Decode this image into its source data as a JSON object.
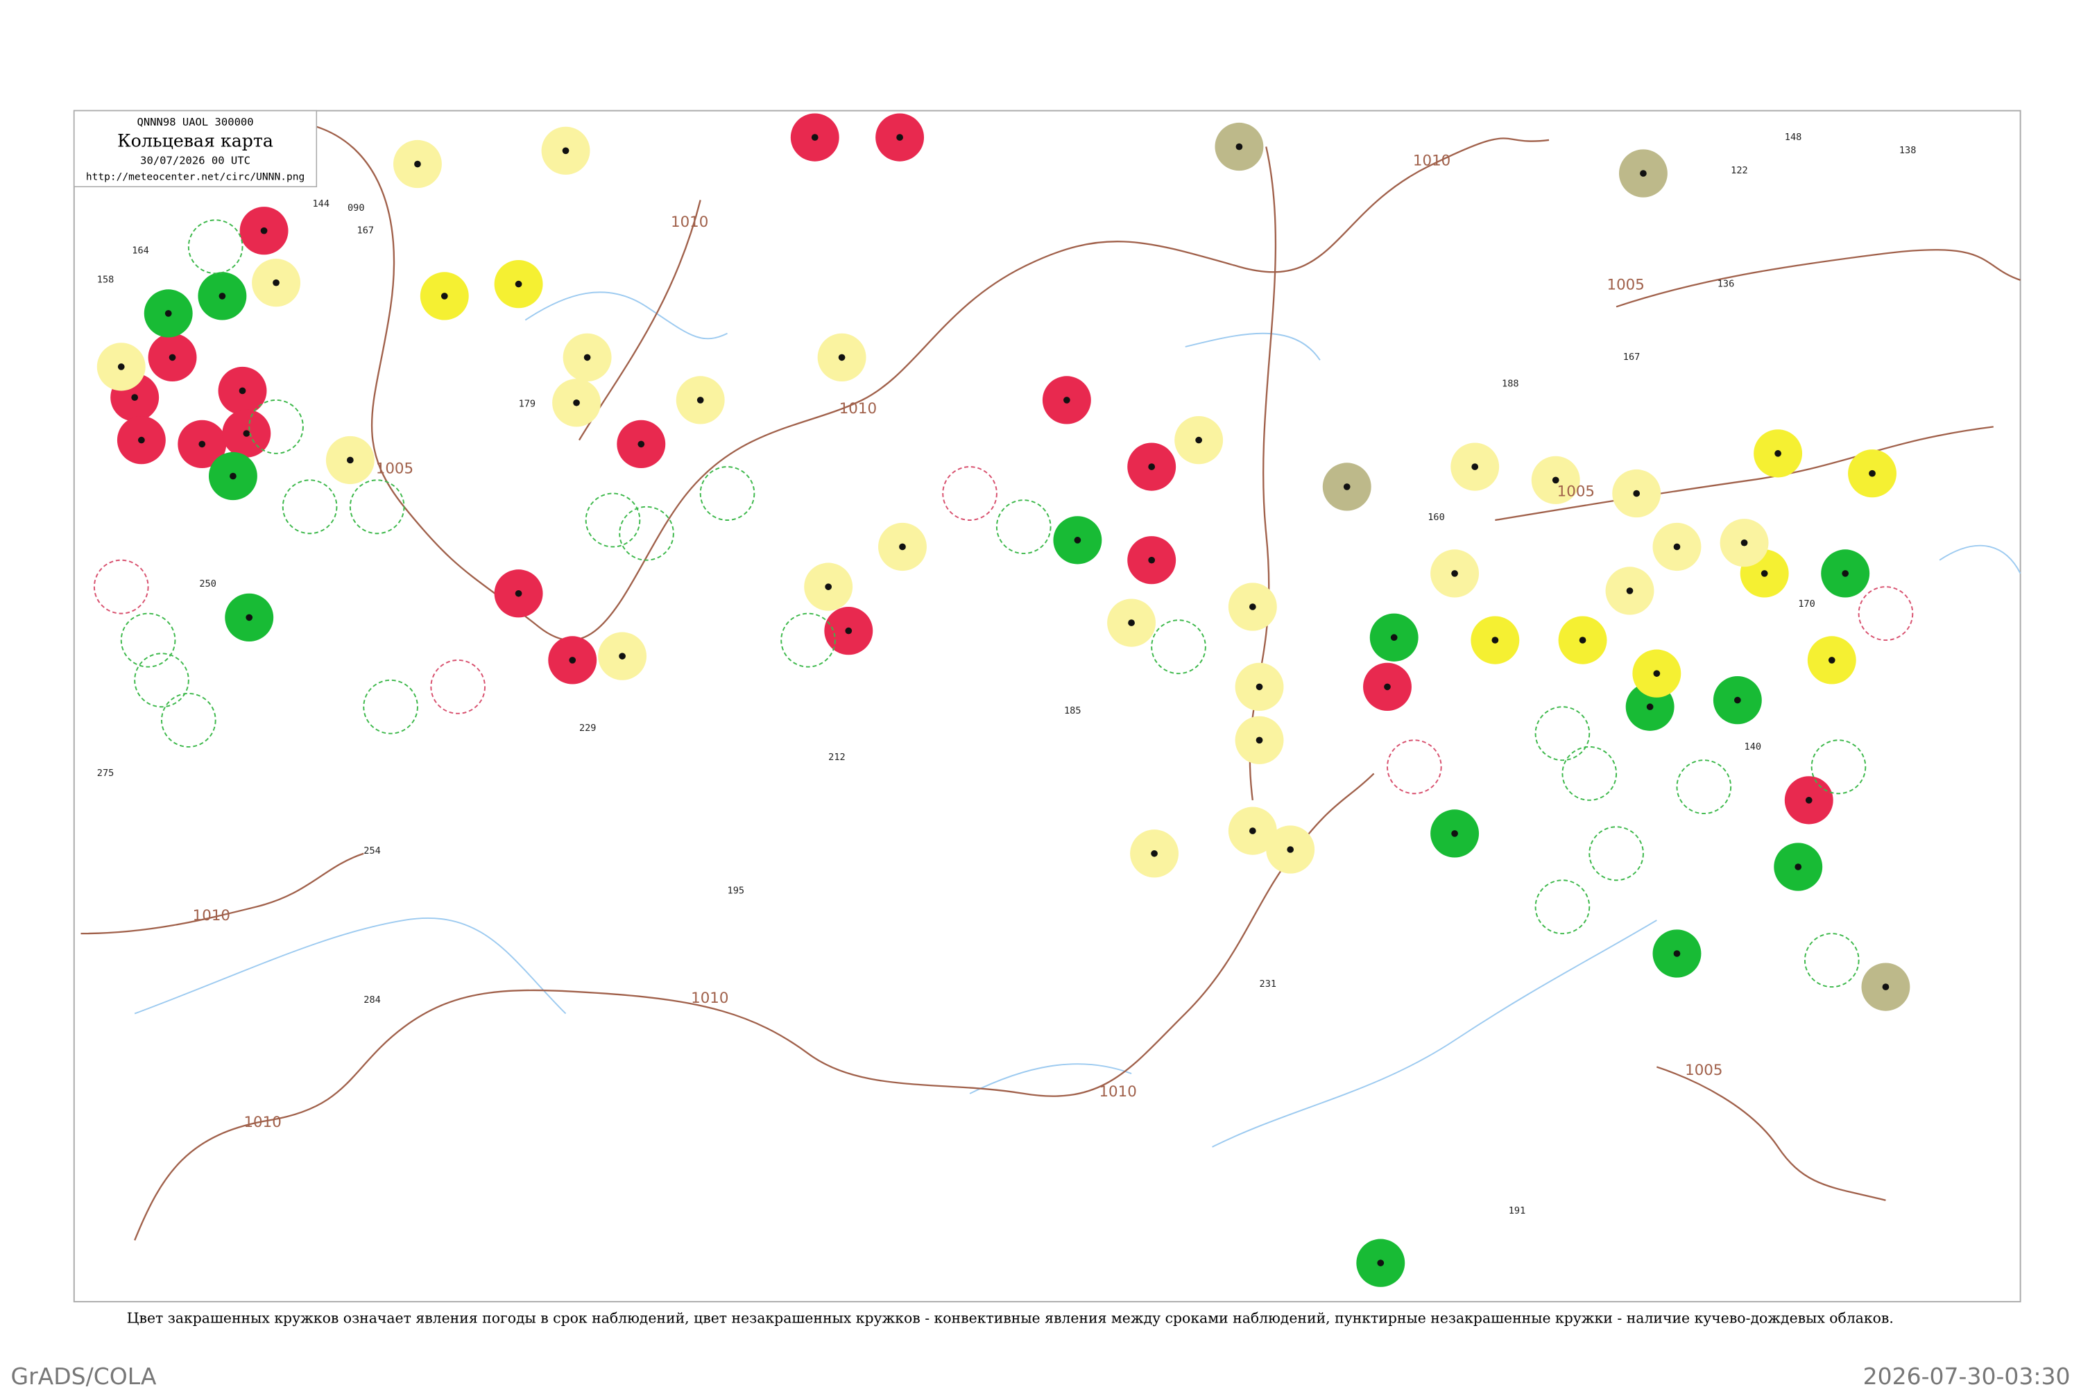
{
  "header": {
    "code": "QNNN98  UAOL  300000",
    "title": "Кольцевая карта",
    "date": "30/07/2026 00 UTC",
    "url": "http://meteocenter.net/circ/UNNN.png"
  },
  "isobars": [
    "1010",
    "1010",
    "1010",
    "1010",
    "1010",
    "1010",
    "1010",
    "1005",
    "1005",
    "1005",
    "1005"
  ],
  "stations": [
    "144",
    "090",
    "167",
    "164",
    "158",
    "250",
    "275",
    "254",
    "195",
    "212",
    "179",
    "185",
    "160",
    "170",
    "188",
    "136",
    "148",
    "138",
    "122",
    "167",
    "231",
    "284",
    "191",
    "229",
    "140"
  ],
  "caption": "Цвет закрашенных кружков означает явления погоды в срок наблюдений, цвет незакрашенных кружков - конвективные явления между сроками наблюдений, пунктирные незакрашенные кружки - наличие кучево-дождевых облаков.",
  "footer": {
    "left": "GrADS/COLA",
    "right": "2026-07-30-03:30"
  }
}
